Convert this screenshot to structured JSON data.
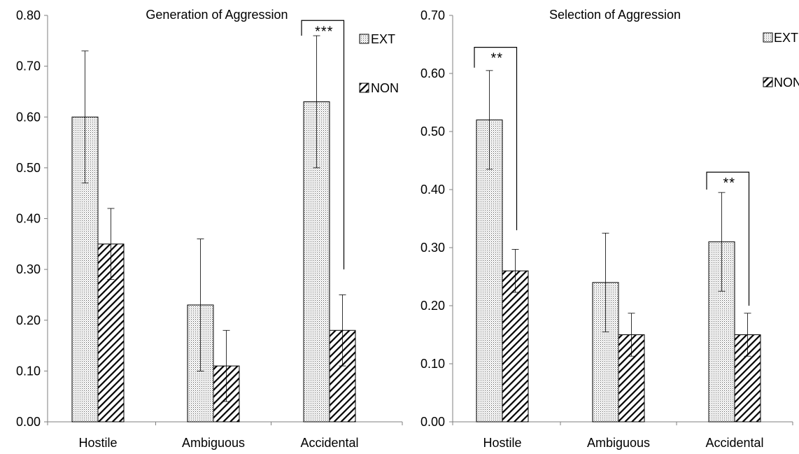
{
  "chart_data": [
    {
      "type": "bar",
      "title": "Generation of Aggression",
      "xlabel": "",
      "ylabel": "",
      "ylim": [
        0,
        0.8
      ],
      "yticks": [
        "0.00",
        "0.10",
        "0.20",
        "0.30",
        "0.40",
        "0.50",
        "0.60",
        "0.70",
        "0.80"
      ],
      "categories": [
        "Hostile",
        "Ambiguous",
        "Accidental"
      ],
      "series": [
        {
          "name": "EXT",
          "pattern": "dots",
          "values": [
            0.6,
            0.23,
            0.63
          ],
          "errors": [
            0.13,
            0.13,
            0.13
          ]
        },
        {
          "name": "NON",
          "pattern": "hatch",
          "values": [
            0.35,
            0.11,
            0.18
          ],
          "errors": [
            0.07,
            0.07,
            0.07
          ]
        }
      ],
      "legend_position": "right",
      "grid": false,
      "significance": [
        {
          "category": 2,
          "label": "***",
          "top": 0.79,
          "left_end": 0.76,
          "right_end": 0.3
        }
      ]
    },
    {
      "type": "bar",
      "title": "Selection of Aggression",
      "xlabel": "",
      "ylabel": "",
      "ylim": [
        0,
        0.7
      ],
      "yticks": [
        "0.00",
        "0.10",
        "0.20",
        "0.30",
        "0.40",
        "0.50",
        "0.60",
        "0.70"
      ],
      "categories": [
        "Hostile",
        "Ambiguous",
        "Accidental"
      ],
      "series": [
        {
          "name": "EXT",
          "pattern": "dots",
          "values": [
            0.52,
            0.24,
            0.31
          ],
          "errors": [
            0.085,
            0.085,
            0.085
          ]
        },
        {
          "name": "NON",
          "pattern": "hatch",
          "values": [
            0.26,
            0.15,
            0.15
          ],
          "errors": [
            0.037,
            0.037,
            0.037
          ]
        }
      ],
      "legend_position": "right",
      "grid": false,
      "significance": [
        {
          "category": 0,
          "label": "**",
          "top": 0.645,
          "left_end": 0.61,
          "right_end": 0.33
        },
        {
          "category": 2,
          "label": "**",
          "top": 0.43,
          "left_end": 0.4,
          "right_end": 0.2
        }
      ]
    }
  ]
}
